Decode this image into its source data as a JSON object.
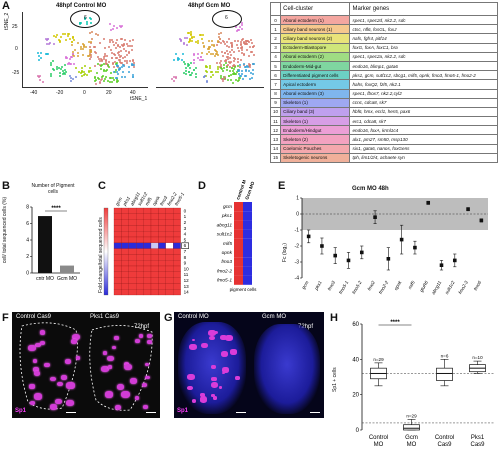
{
  "panels": {
    "A": "A",
    "B": "B",
    "C": "C",
    "D": "D",
    "E": "E",
    "F": "F",
    "G": "G",
    "H": "H"
  },
  "panelA": {
    "control_title": "48hpf Control MO",
    "gcm_title": "48hpf Gcm MO",
    "xlabel": "tSNE_1",
    "ylabel": "tSNE_2",
    "xticks": [
      "-40",
      "-20",
      "0",
      "20",
      "40"
    ],
    "yticks": [
      "25",
      "0",
      "-25"
    ],
    "circle_label": "6",
    "table": {
      "header": [
        "Cell-cluster",
        "Marker genes"
      ],
      "rows": [
        {
          "id": "0",
          "name": "Aboral ectoderm (1)",
          "genes": "spec1, spec2d, nk2.2, sdc",
          "color": "#f4a6a0"
        },
        {
          "id": "1",
          "name": "Ciliary band neurons (1)",
          "genes": "ctsc, nfl6, fosGL, foxJ",
          "color": "#f6c88e"
        },
        {
          "id": "2",
          "name": "Ciliary band neurons (2)",
          "genes": "nafs, fgfr4, pitf14",
          "color": "#e9e37a"
        },
        {
          "id": "3",
          "name": "Ectoderm-Blastopore",
          "genes": "foxG, foxA, foxC1, bra",
          "color": "#cfe67a"
        },
        {
          "id": "4",
          "name": "Aboral ectoderm (2)",
          "genes": "spec1, spec2a, nk2.2, sdc",
          "color": "#9fdc83"
        },
        {
          "id": "5",
          "name": "Endoderm-Mid-gut",
          "genes": "endo16, blimp1, gata6",
          "color": "#7fd6a0"
        },
        {
          "id": "6",
          "name": "Differentiated pigment cells",
          "genes": "pks1, gcm, sutf1c2, sbcg1, mif5, opnk, fmo3, fmo5-1, fmo2-2",
          "color": "#6cd0c4"
        },
        {
          "id": "7",
          "name": "Apical ectoderm",
          "genes": "hahs, foxQ2, fzl5, nk2.1",
          "color": "#74c9e6"
        },
        {
          "id": "8",
          "name": "Aboral ectoderm (3)",
          "genes": "spec1, fbox7, nk2.2,cyl2",
          "color": "#7fb6ee"
        },
        {
          "id": "9",
          "name": "Skeleton (1)",
          "genes": "ccnc, cdca8, sk7",
          "color": "#9ea8f2"
        },
        {
          "id": "10",
          "name": "Ciliary band (3)",
          "genes": "hbf6, hmx, ecrl1, hes5, pax6",
          "color": "#bfa0ee"
        },
        {
          "id": "11",
          "name": "Skeleton (1)",
          "genes": "erc1, cdca8, sk7",
          "color": "#d79ee6"
        },
        {
          "id": "12",
          "name": "Endoderm/Hindgut",
          "genes": "endo16, foxA, krml1c4",
          "color": "#ec9fd6"
        },
        {
          "id": "13",
          "name": "Skeleton (2)",
          "genes": "alx1, pm27, sm50, msp130",
          "color": "#f3a2c0"
        },
        {
          "id": "14",
          "name": "Coelomic Pouches",
          "genes": "six1, gata6, nanos, foxGens",
          "color": "#f4a8ad"
        },
        {
          "id": "15",
          "name": "Skeletogenic neurons",
          "genes": "tph, lim1/2/4, achaete syn",
          "color": "#f0b09a"
        }
      ]
    }
  },
  "panelB": {
    "title": "Number of Pigment cells",
    "ylabel": "cell/ total sequenced cells (%)",
    "yticks": [
      "0",
      "2",
      "4",
      "6",
      "8"
    ],
    "significance": "****",
    "categories": [
      "cntr MO",
      "Gcm MO"
    ]
  },
  "panelC": {
    "genes": [
      "gcm",
      "pks1",
      "abcg11",
      "sult1c2",
      "mif5",
      "opnk",
      "fmo3",
      "fmo2-2",
      "fmo5-1"
    ],
    "clusters": [
      "0",
      "1",
      "2",
      "3",
      "4",
      "5",
      "6",
      "7",
      "8",
      "9",
      "10",
      "11",
      "12",
      "13",
      "14"
    ],
    "colorbar_label": "Fold change/total sequenced cells"
  },
  "panelD": {
    "genes": [
      "gcm",
      "pks1",
      "abcg11",
      "sult1c2",
      "mif5",
      "opnk",
      "fmo3",
      "fmo2-2",
      "fmo5-1"
    ],
    "columns": [
      "control MO",
      "Gcm MO"
    ],
    "footer": "pigment cells"
  },
  "panelE": {
    "title": "Gcm MO 48h",
    "ylabel": "Fc (log₂)",
    "yticks": [
      "1",
      "0",
      "-1",
      "-2",
      "-3",
      "-4"
    ],
    "genes": [
      "gcm",
      "pks1",
      "fmo3",
      "fmo5-1",
      "fmo5-2",
      "fmo2",
      "fmo2-2",
      "opnk",
      "mif5",
      "gluR6",
      "abcg11",
      "sult1c2",
      "fmo2-3",
      "fmo6"
    ]
  },
  "panelF": {
    "left_label": "Control Cas9",
    "right_label": "Pks1 Cas9",
    "stage": "72hpf",
    "stain": "Sp1"
  },
  "panelG": {
    "left_label": "Control MO",
    "right_label": "Gcm MO",
    "stage": "72hpf",
    "stain": "Sp1"
  },
  "panelH": {
    "ylabel": "Sp1 + cells",
    "yticks": [
      "60",
      "40",
      "20",
      "0"
    ],
    "significance": "****",
    "categories": [
      "Control MO",
      "Gcm MO",
      "Control Cas9",
      "Pks1 Cas9"
    ],
    "n_labels": [
      "n=29",
      "n=29",
      "n=6",
      "n=10"
    ]
  },
  "chart_data": [
    {
      "type": "bar",
      "title": "Number of Pigment cells",
      "ylabel": "cell/ total sequenced cells (%)",
      "categories": [
        "cntr MO",
        "Gcm MO"
      ],
      "values": [
        6.9,
        0.9
      ],
      "ylim": [
        0,
        8
      ],
      "colors": [
        "#111111",
        "#8a8a8a"
      ]
    },
    {
      "type": "scatter",
      "title": "Gcm MO 48h",
      "ylabel": "Fc (log₂)",
      "categories": [
        "gcm",
        "pks1",
        "fmo3",
        "fmo5-1",
        "fmo5-2",
        "fmo2",
        "fmo2-2",
        "opnk",
        "mif5",
        "gluR6",
        "abcg11",
        "sult1c2",
        "fmo2-3",
        "fmo6"
      ],
      "values": [
        -1.4,
        -2.0,
        -2.6,
        -2.9,
        -2.4,
        -0.2,
        -2.8,
        -1.6,
        -2.1,
        0.7,
        -3.2,
        -2.9,
        0.3,
        -0.4
      ],
      "errors": [
        0.4,
        0.5,
        0.5,
        0.5,
        0.4,
        0.4,
        0.7,
        0.9,
        0.4,
        0.1,
        0.3,
        0.4,
        0.1,
        0.1
      ],
      "ylim": [
        -4,
        1
      ]
    },
    {
      "type": "box",
      "ylabel": "Sp1 + cells",
      "categories": [
        "Control MO",
        "Gcm MO",
        "Control Cas9",
        "Pks1 Cas9"
      ],
      "median": [
        32,
        1,
        32,
        35
      ],
      "q1": [
        29,
        0,
        28,
        33
      ],
      "q3": [
        35,
        3,
        35,
        37
      ],
      "min": [
        25,
        0,
        25,
        32
      ],
      "max": [
        38,
        6,
        40,
        39
      ],
      "ylim": [
        0,
        60
      ]
    }
  ]
}
